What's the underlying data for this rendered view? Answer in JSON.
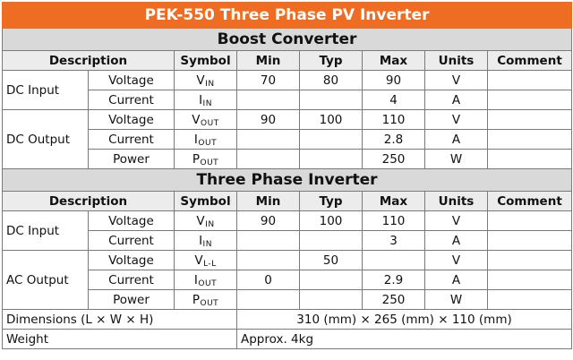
{
  "title": "PEK-550 Three Phase PV Inverter",
  "header": {
    "description": "Description",
    "symbol": "Symbol",
    "min": "Min",
    "typ": "Typ",
    "max": "Max",
    "units": "Units",
    "comment": "Comment"
  },
  "boost": {
    "title": "Boost Converter",
    "dc_input": {
      "group": "DC Input",
      "voltage": {
        "param": "Voltage",
        "sym": "V",
        "sub": "IN",
        "min": "70",
        "typ": "80",
        "max": "90",
        "units": "V"
      },
      "current": {
        "param": "Current",
        "sym": "I",
        "sub": "IN",
        "min": "",
        "typ": "",
        "max": "4",
        "units": "A"
      }
    },
    "dc_output": {
      "group": "DC Output",
      "voltage": {
        "param": "Voltage",
        "sym": "V",
        "sub": "OUT",
        "min": "90",
        "typ": "100",
        "max": "110",
        "units": "V"
      },
      "current": {
        "param": "Current",
        "sym": "I",
        "sub": "OUT",
        "min": "",
        "typ": "",
        "max": "2.8",
        "units": "A"
      },
      "power": {
        "param": "Power",
        "sym": "P",
        "sub": "OUT",
        "min": "",
        "typ": "",
        "max": "250",
        "units": "W"
      }
    }
  },
  "inverter": {
    "title": "Three Phase Inverter",
    "dc_input": {
      "group": "DC Input",
      "voltage": {
        "param": "Voltage",
        "sym": "V",
        "sub": "IN",
        "min": "90",
        "typ": "100",
        "max": "110",
        "units": "V"
      },
      "current": {
        "param": "Current",
        "sym": "I",
        "sub": "IN",
        "min": "",
        "typ": "",
        "max": "3",
        "units": "A"
      }
    },
    "ac_output": {
      "group": "AC Output",
      "voltage": {
        "param": "Voltage",
        "sym": "V",
        "sub": "L-L",
        "min": "",
        "typ": "50",
        "max": "",
        "units": "V"
      },
      "current": {
        "param": "Current",
        "sym": "I",
        "sub": "OUT",
        "min": "0",
        "typ": "",
        "max": "2.9",
        "units": "A"
      },
      "power": {
        "param": "Power",
        "sym": "P",
        "sub": "OUT",
        "min": "",
        "typ": "",
        "max": "250",
        "units": "W"
      }
    }
  },
  "dimensions": {
    "label": "Dimensions (L × W × H)",
    "value": "310 (mm) × 265 (mm) × 110 (mm)"
  },
  "weight": {
    "label": "Weight",
    "value": "Approx. 4kg"
  },
  "colors": {
    "title_bg": "#ef6c23",
    "section_bg": "#d9d9d9",
    "header_bg": "#ececec"
  }
}
